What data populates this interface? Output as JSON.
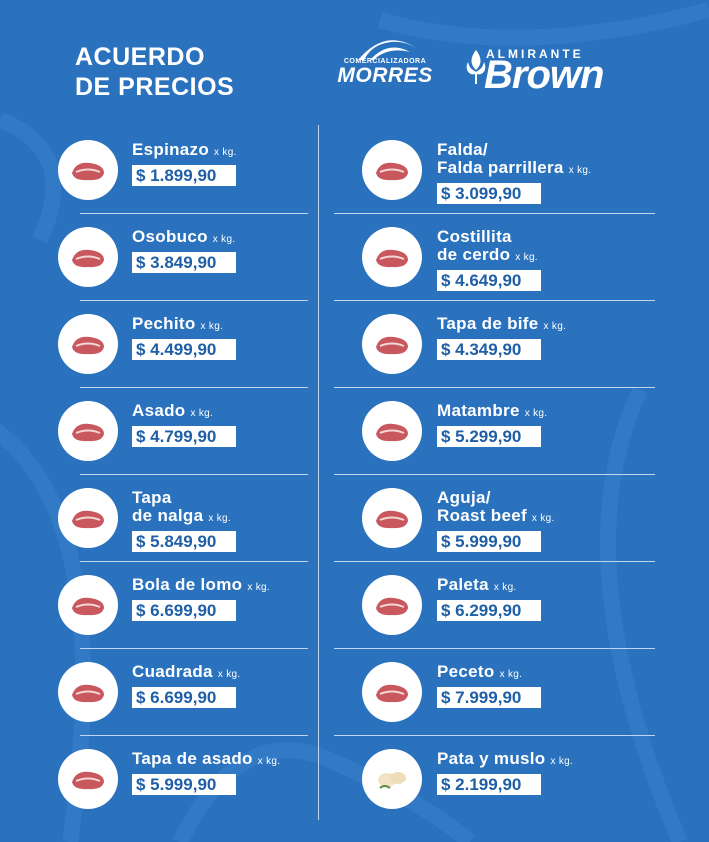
{
  "header": {
    "title_line1": "ACUERDO",
    "title_line2": "DE PRECIOS",
    "logo_morres_top": "COMERCIALIZADORA",
    "logo_morres_name": "MORRES",
    "logo_brown_top": "ALMIRANTE",
    "logo_brown_name": "Brown"
  },
  "unit_label": "x kg.",
  "colors": {
    "background": "#2a72be",
    "price_text": "#1f5fa7",
    "meat": "#c8585e"
  },
  "products": [
    {
      "name_lines": [
        "Espinazo"
      ],
      "price": "$ 1.899,90",
      "icon": "espinazo-meat-icon"
    },
    {
      "name_lines": [
        "Falda/",
        "Falda parrillera"
      ],
      "price": "$ 3.099,90",
      "icon": "falda-meat-icon"
    },
    {
      "name_lines": [
        "Osobuco"
      ],
      "price": "$ 3.849,90",
      "icon": "osobuco-meat-icon"
    },
    {
      "name_lines": [
        "Costillita",
        "de cerdo"
      ],
      "price": "$ 4.649,90",
      "icon": "costillita-meat-icon"
    },
    {
      "name_lines": [
        "Pechito"
      ],
      "price": "$ 4.499,90",
      "icon": "pechito-meat-icon"
    },
    {
      "name_lines": [
        "Tapa de bife"
      ],
      "price": "$ 4.349,90",
      "icon": "tapa-de-bife-meat-icon"
    },
    {
      "name_lines": [
        "Asado"
      ],
      "price": "$ 4.799,90",
      "icon": "asado-meat-icon"
    },
    {
      "name_lines": [
        "Matambre"
      ],
      "price": "$ 5.299,90",
      "icon": "matambre-meat-icon"
    },
    {
      "name_lines": [
        "Tapa",
        "de nalga"
      ],
      "price": "$ 5.849,90",
      "icon": "tapa-de-nalga-meat-icon"
    },
    {
      "name_lines": [
        "Aguja/",
        "Roast beef"
      ],
      "price": "$ 5.999,90",
      "icon": "aguja-meat-icon"
    },
    {
      "name_lines": [
        "Bola de lomo"
      ],
      "price": "$ 6.699,90",
      "icon": "bola-de-lomo-meat-icon"
    },
    {
      "name_lines": [
        "Paleta"
      ],
      "price": "$ 6.299,90",
      "icon": "paleta-meat-icon"
    },
    {
      "name_lines": [
        "Cuadrada"
      ],
      "price": "$ 6.699,90",
      "icon": "cuadrada-meat-icon"
    },
    {
      "name_lines": [
        "Peceto"
      ],
      "price": "$ 7.999,90",
      "icon": "peceto-meat-icon"
    },
    {
      "name_lines": [
        "Tapa de asado"
      ],
      "price": "$ 5.999,90",
      "icon": "tapa-de-asado-meat-icon"
    },
    {
      "name_lines": [
        "Pata y muslo"
      ],
      "price": "$ 2.199,90",
      "icon": "chicken-leg-icon"
    }
  ]
}
